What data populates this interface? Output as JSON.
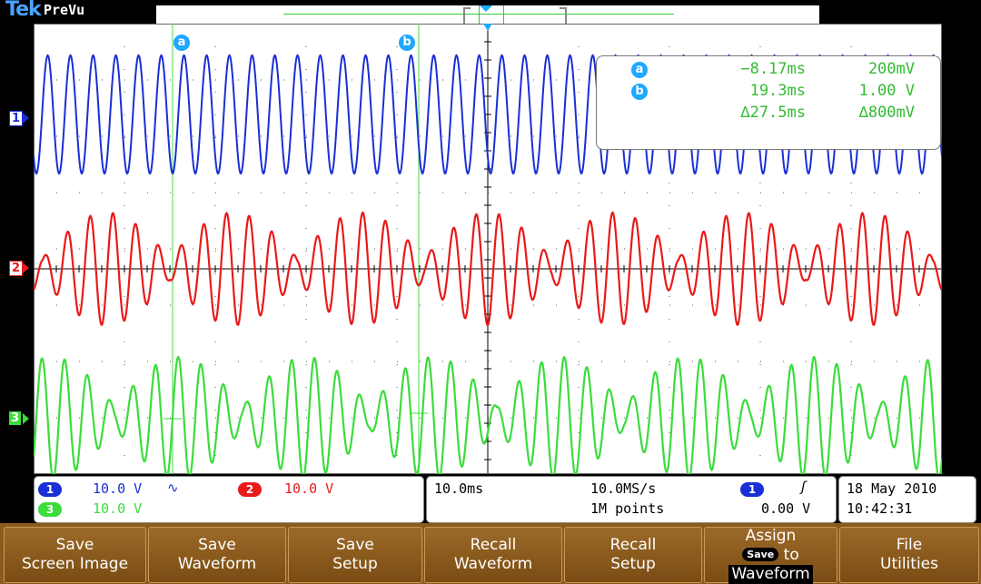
{
  "header": {
    "logo": "Tek",
    "run_status": "PreVu"
  },
  "channels": {
    "ch1": {
      "color": "#1a2fd6",
      "marker": "1"
    },
    "ch2": {
      "color": "#e81a1a",
      "marker": "2"
    },
    "ch3": {
      "color": "#3bdc3b",
      "marker": "3"
    }
  },
  "cursors": {
    "a": {
      "label": "a",
      "time": "−8.17ms",
      "volt": "200mV"
    },
    "b": {
      "label": "b",
      "time": "19.3ms",
      "volt": "1.00 V"
    },
    "delta": {
      "time": "∆27.5ms",
      "volt": "∆800mV"
    }
  },
  "status": {
    "ch1_label": "1",
    "ch1_scale": "10.0 V",
    "ch1_coupling": "∿",
    "ch2_label": "2",
    "ch2_scale": "10.0 V",
    "ch3_label": "3",
    "ch3_scale": "10.0 V",
    "timebase": "10.0ms",
    "sample_rate": "10.0MS/s",
    "record_length": "1M points",
    "trigger_source": "1",
    "trigger_slope": "ʃ",
    "trigger_level": "0.00 V",
    "date": "18 May 2010",
    "time": "10:42:31"
  },
  "softkeys": [
    {
      "line1": "Save",
      "line2": "Screen Image"
    },
    {
      "line1": "Save",
      "line2": "Waveform"
    },
    {
      "line1": "Save",
      "line2": "Setup"
    },
    {
      "line1": "Recall",
      "line2": "Waveform"
    },
    {
      "line1": "Recall",
      "line2": "Setup"
    },
    {
      "line1": "Assign",
      "pill": "Save",
      "mid": "to",
      "line2": "Waveform"
    },
    {
      "line1": "File",
      "line2": "Utilities"
    }
  ]
}
